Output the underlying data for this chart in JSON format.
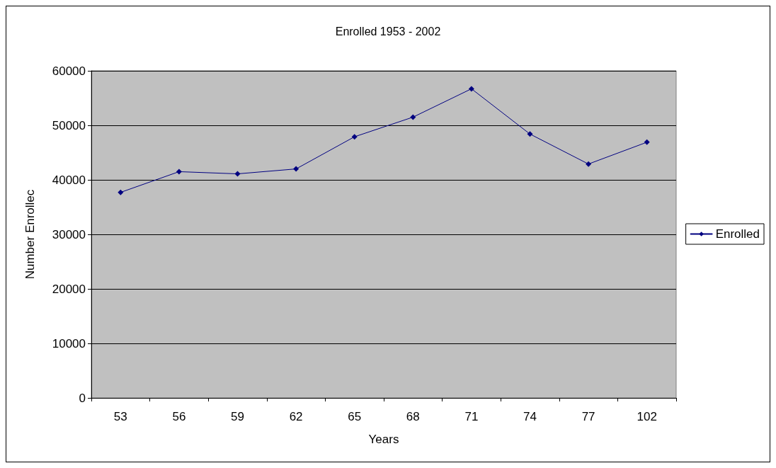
{
  "chart_data": {
    "type": "line",
    "title": "Enrolled 1953 - 2002",
    "xlabel": "Years",
    "ylabel": "Number Enrollec",
    "categories": [
      "53",
      "56",
      "59",
      "62",
      "65",
      "68",
      "71",
      "74",
      "77",
      "102"
    ],
    "series": [
      {
        "name": "Enrolled",
        "color": "#000080",
        "values": [
          37700,
          41500,
          41100,
          42000,
          47900,
          51500,
          56700,
          48400,
          42900,
          46900
        ]
      }
    ],
    "ylim": [
      0,
      60000
    ],
    "yticks": [
      0,
      10000,
      20000,
      30000,
      40000,
      50000,
      60000
    ],
    "grid": "y",
    "legend": "right",
    "marker": "diamond",
    "line_style": "solid"
  }
}
